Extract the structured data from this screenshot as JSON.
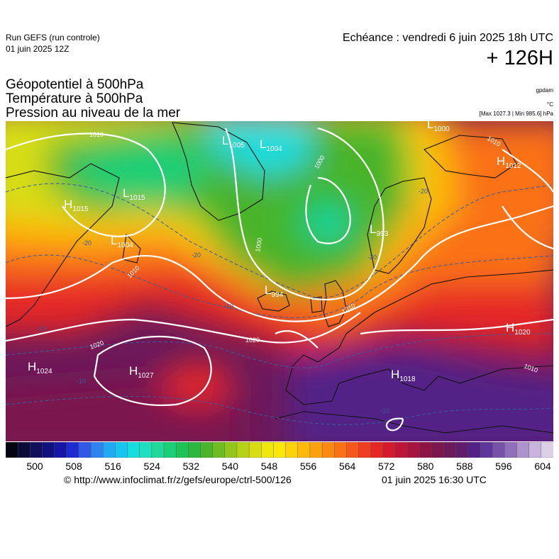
{
  "header": {
    "run_label": "Run GEFS (run controle)",
    "run_date": "01 juin 2025 12Z",
    "valid_label": "Echéance : vendredi 6 juin 2025 18h UTC",
    "lead_time": "+ 126H"
  },
  "parameters": [
    "Géopotentiel à 500hPa",
    "Température à 500hPa",
    "Pression au niveau de la mer"
  ],
  "units": {
    "geopotential": "gpdam",
    "temperature": "°C",
    "pressure_minmax": "[Max 1027.3 | Min 985.6] hPa"
  },
  "map": {
    "pressure_centers": [
      {
        "type": "H",
        "value": "1015"
      },
      {
        "type": "L",
        "value": "1005"
      },
      {
        "type": "L",
        "value": "1004"
      },
      {
        "type": "L",
        "value": "1000"
      },
      {
        "type": "H",
        "value": "1012"
      },
      {
        "type": "L",
        "value": "1015"
      },
      {
        "type": "L",
        "value": "1004"
      },
      {
        "type": "L",
        "value": "993"
      },
      {
        "type": "L",
        "value": "994"
      },
      {
        "type": "H",
        "value": "1020"
      },
      {
        "type": "H",
        "value": "1024"
      },
      {
        "type": "H",
        "value": "1027"
      },
      {
        "type": "H",
        "value": "1018"
      }
    ],
    "isobar_labels": [
      "1010",
      "1000",
      "1000",
      "1010",
      "1010",
      "1020",
      "1020",
      "1010",
      "1010"
    ],
    "isotherm_labels": [
      "-20",
      "-20",
      "-20",
      "-20",
      "-10",
      "-10",
      "-10",
      "-10"
    ],
    "colors": {
      "land_outline": "#111111",
      "isobar": "#ffffff",
      "isotherm": "#3d5a99"
    }
  },
  "colorbar": {
    "ticks": [
      "500",
      "508",
      "516",
      "524",
      "532",
      "540",
      "548",
      "556",
      "564",
      "572",
      "580",
      "588",
      "596",
      "604"
    ],
    "colors": [
      "#050510",
      "#0b0b3a",
      "#0f0f5c",
      "#11117e",
      "#1515a6",
      "#1f2bd0",
      "#2f5ae6",
      "#2e83f0",
      "#22a9f4",
      "#16c6f0",
      "#17dde0",
      "#1ee0bf",
      "#1fd89a",
      "#1ccf76",
      "#1dc356",
      "#2cb83e",
      "#49b42c",
      "#6cbc22",
      "#93c61c",
      "#b7d116",
      "#d7dd12",
      "#efe80e",
      "#fbe70c",
      "#fdd10c",
      "#fdba0d",
      "#fda20f",
      "#fc8a12",
      "#fa7116",
      "#f6571b",
      "#f03e20",
      "#e52826",
      "#d41b2e",
      "#be1637",
      "#a7143f",
      "#8f1446",
      "#7b174e",
      "#6c1a5a",
      "#5f1d6b",
      "#532287",
      "#5f3798",
      "#7651a8",
      "#9170bb",
      "#ae93cd",
      "#c8b4dc",
      "#dcd0e8"
    ]
  },
  "footer": {
    "credit_url": "© http://www.infoclimat.fr/z/gefs/europe/ctrl-500/126",
    "credit_time": "01 juin 2025 16:30 UTC"
  }
}
